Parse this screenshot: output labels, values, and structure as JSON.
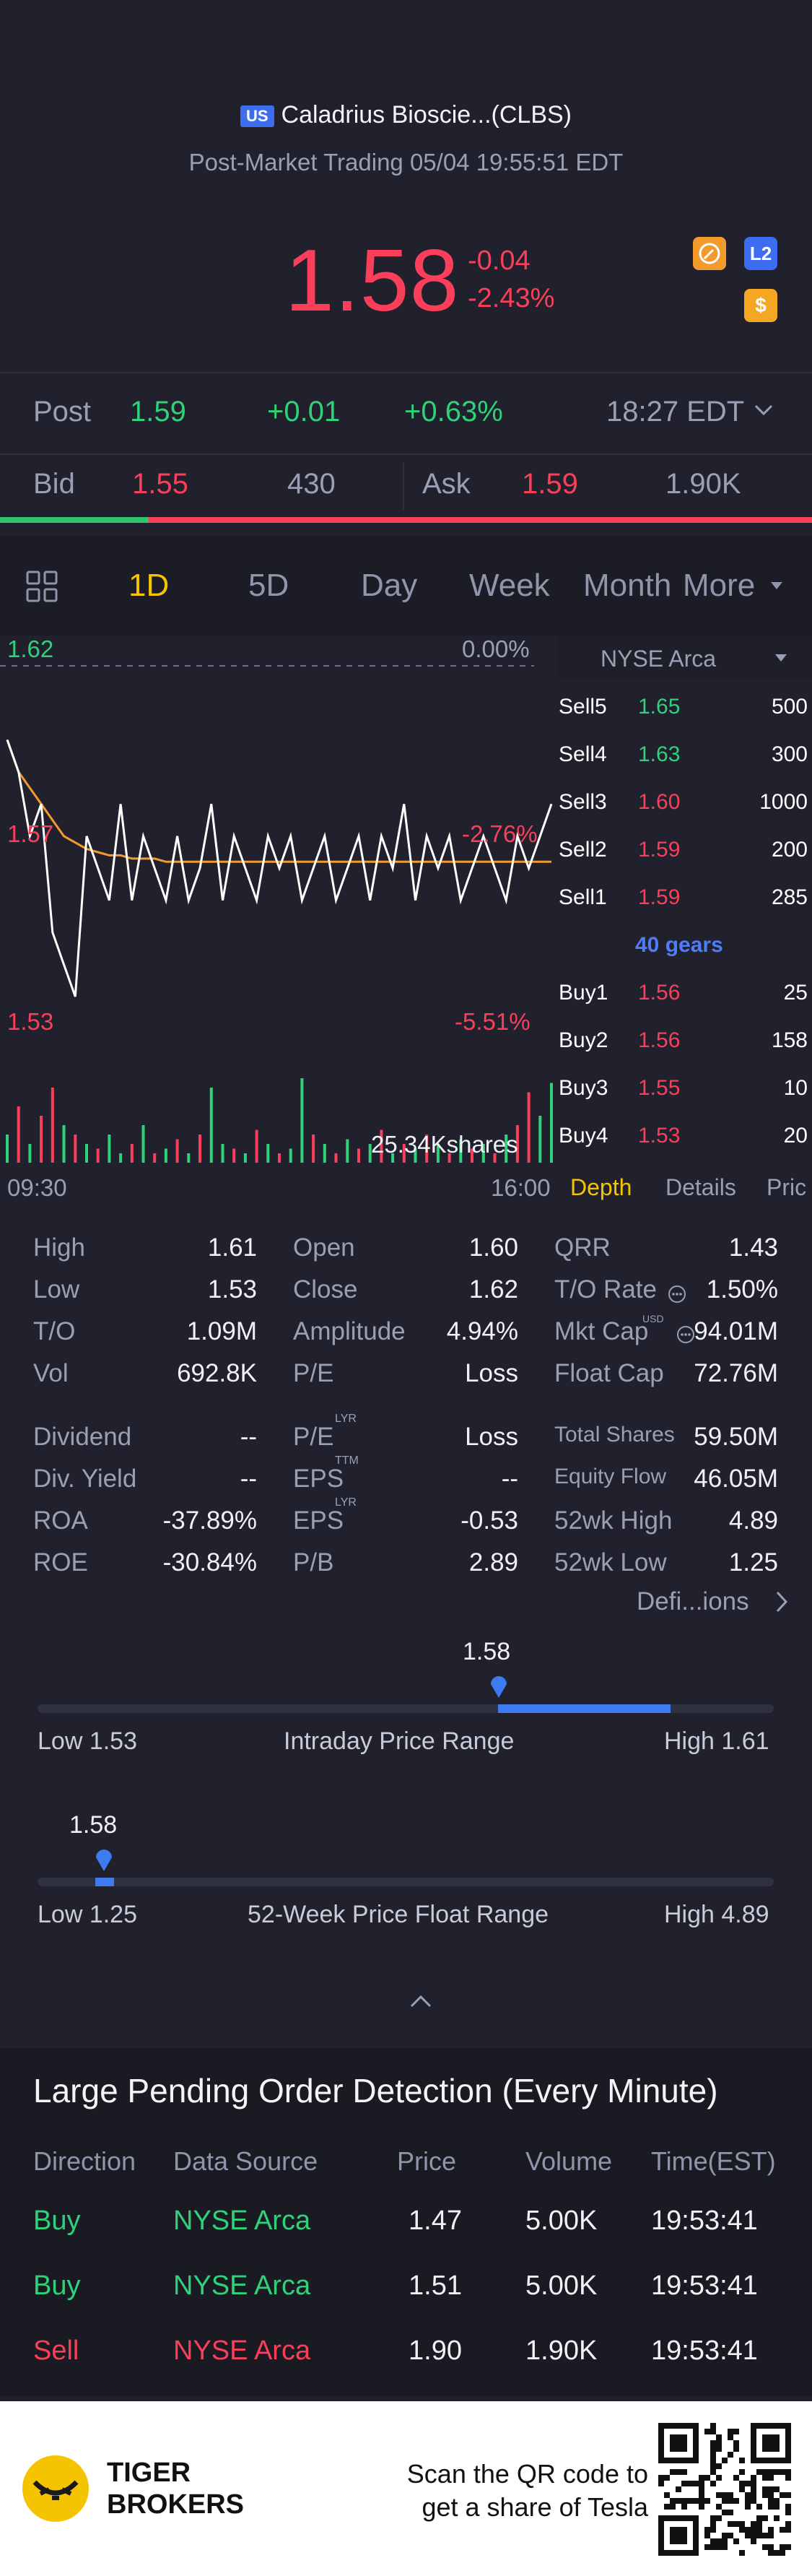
{
  "header": {
    "market_badge": "US",
    "stock_title": "Caladrius Bioscie...(CLBS)",
    "session_info": "Post-Market Trading 05/04 19:55:51 EDT",
    "price": "1.58",
    "change": "-0.04",
    "change_pct": "-2.43%",
    "icons": [
      "compass-icon",
      "level2-icon",
      "dollar-icon"
    ],
    "level2_label": "L2",
    "dollar_label": "$"
  },
  "post": {
    "label": "Post",
    "price": "1.59",
    "change": "+0.01",
    "change_pct": "+0.63%",
    "time": "18:27 EDT"
  },
  "quote": {
    "bid_label": "Bid",
    "bid_price": "1.55",
    "bid_size": "430",
    "ask_label": "Ask",
    "ask_price": "1.59",
    "ask_size": "1.90K",
    "bid_ratio": 0.183
  },
  "tabs": [
    "1D",
    "5D",
    "Day",
    "Week",
    "Month",
    "More"
  ],
  "active_tab": "1D",
  "chart_labels": {
    "high_price": "1.62",
    "high_pct": "0.00%",
    "mid_price": "1.57",
    "mid_pct": "-2.76%",
    "low_price": "1.53",
    "low_pct": "-5.51%",
    "volume": "25.34Kshares",
    "time_start": "09:30",
    "time_end": "16:00"
  },
  "chart_data": {
    "type": "line",
    "x_range": [
      "09:30",
      "16:00"
    ],
    "ylim": [
      1.53,
      1.62
    ],
    "series": [
      {
        "values": [
          1.61,
          1.6,
          1.58,
          1.59,
          1.55,
          1.54,
          1.53,
          1.58,
          1.57,
          1.56,
          1.59,
          1.56,
          1.58,
          1.57,
          1.56,
          1.58,
          1.56,
          1.57,
          1.59,
          1.56,
          1.58,
          1.57,
          1.56,
          1.58,
          1.57,
          1.58,
          1.56,
          1.57,
          1.58,
          1.56,
          1.57,
          1.58,
          1.56,
          1.58,
          1.57,
          1.59,
          1.56,
          1.58,
          1.57,
          1.58,
          1.56,
          1.57,
          1.58,
          1.57,
          1.56,
          1.58,
          1.57,
          1.58,
          1.59
        ]
      },
      {
        "values": [
          1.61,
          1.6,
          1.595,
          1.59,
          1.585,
          1.58,
          1.578,
          1.576,
          1.575,
          1.574,
          1.574,
          1.573,
          1.573,
          1.573,
          1.572,
          1.572,
          1.572,
          1.572,
          1.572,
          1.572,
          1.572,
          1.572,
          1.572,
          1.572,
          1.572,
          1.572,
          1.572,
          1.572,
          1.572,
          1.572,
          1.572,
          1.572,
          1.572,
          1.572,
          1.572,
          1.572,
          1.572,
          1.572,
          1.572,
          1.572,
          1.572,
          1.572,
          1.572,
          1.572,
          1.572,
          1.572,
          1.572,
          1.572,
          1.572
        ]
      }
    ],
    "volume": [
      0.3,
      0.6,
      0.2,
      0.5,
      0.8,
      0.4,
      0.3,
      0.2,
      0.15,
      0.3,
      0.1,
      0.2,
      0.4,
      0.1,
      0.15,
      0.25,
      0.1,
      0.3,
      0.8,
      0.2,
      0.15,
      0.1,
      0.35,
      0.2,
      0.1,
      0.15,
      0.9,
      0.3,
      0.2,
      0.1,
      0.25,
      0.15,
      0.2,
      0.35,
      0.1,
      0.2,
      0.15,
      0.3,
      0.2,
      0.1,
      0.25,
      0.15,
      0.2,
      0.1,
      0.3,
      0.4,
      0.75,
      0.5,
      0.85
    ],
    "volume_up": [
      true,
      false,
      true,
      false,
      false,
      true,
      false,
      true,
      false,
      true,
      true,
      false,
      true,
      false,
      true,
      false,
      true,
      false,
      true,
      true,
      false,
      true,
      false,
      true,
      false,
      true,
      true,
      false,
      true,
      false,
      true,
      false,
      true,
      false,
      true,
      false,
      true,
      false,
      true,
      false,
      true,
      false,
      true,
      false,
      true,
      false,
      false,
      true,
      true
    ]
  },
  "orderbook": {
    "exchange": "NYSE Arca",
    "sells": [
      {
        "label": "Sell5",
        "price": "1.65",
        "size": "500",
        "color": "green"
      },
      {
        "label": "Sell4",
        "price": "1.63",
        "size": "300",
        "color": "green"
      },
      {
        "label": "Sell3",
        "price": "1.60",
        "size": "1000",
        "color": "red"
      },
      {
        "label": "Sell2",
        "price": "1.59",
        "size": "200",
        "color": "red"
      },
      {
        "label": "Sell1",
        "price": "1.59",
        "size": "285",
        "color": "red"
      }
    ],
    "gears": "40 gears",
    "buys": [
      {
        "label": "Buy1",
        "price": "1.56",
        "size": "25",
        "color": "red"
      },
      {
        "label": "Buy2",
        "price": "1.56",
        "size": "158",
        "color": "red"
      },
      {
        "label": "Buy3",
        "price": "1.55",
        "size": "10",
        "color": "red"
      },
      {
        "label": "Buy4",
        "price": "1.53",
        "size": "20",
        "color": "red"
      }
    ],
    "tabs": [
      "Depth",
      "Details",
      "Pric"
    ]
  },
  "stats": {
    "col1": [
      [
        "High",
        "1.61"
      ],
      [
        "Low",
        "1.53"
      ],
      [
        "T/O",
        "1.09M"
      ],
      [
        "Vol",
        "692.8K"
      ],
      [
        "Dividend",
        "--"
      ],
      [
        "Div. Yield",
        "--"
      ],
      [
        "ROA",
        "-37.89%"
      ],
      [
        "ROE",
        "-30.84%"
      ]
    ],
    "col2": [
      [
        "Open",
        "1.60"
      ],
      [
        "Close",
        "1.62"
      ],
      [
        "Amplitude",
        "4.94%"
      ],
      [
        "P/E",
        "Loss"
      ],
      [
        "P/E",
        "Loss"
      ],
      [
        "EPS",
        "--"
      ],
      [
        "EPS",
        "-0.53"
      ],
      [
        "P/B",
        "2.89"
      ]
    ],
    "col2_sup": [
      "",
      "",
      "",
      "",
      "LYR",
      "TTM",
      "LYR",
      ""
    ],
    "col3": [
      [
        "QRR",
        "1.43"
      ],
      [
        "T/O Rate",
        "1.50%"
      ],
      [
        "Mkt Cap",
        "94.01M"
      ],
      [
        "Float Cap",
        "72.76M"
      ],
      [
        "Total Shares",
        "59.50M"
      ],
      [
        "Equity Flow",
        "46.05M"
      ],
      [
        "52wk High",
        "4.89"
      ],
      [
        "52wk Low",
        "1.25"
      ]
    ],
    "mkt_cap_sup": "USD",
    "eps_ttm_value": "-0.53",
    "definitions_link": "Defi...ions"
  },
  "intraday_range": {
    "current": "1.58",
    "low_label": "Low 1.53",
    "title": "Intraday Price Range",
    "high_label": "High 1.61",
    "low": 1.53,
    "high": 1.61,
    "value": 1.58
  },
  "week52_range": {
    "current": "1.58",
    "low_label": "Low 1.25",
    "title": "52-Week Price Float Range",
    "high_label": "High 4.89",
    "low": 1.25,
    "high": 4.89,
    "value": 1.58
  },
  "pending": {
    "title": "Large Pending Order Detection (Every Minute)",
    "headers": [
      "Direction",
      "Data Source",
      "Price",
      "Volume",
      "Time(EST)"
    ],
    "rows": [
      {
        "direction": "Buy",
        "source": "NYSE Arca",
        "price": "1.47",
        "volume": "5.00K",
        "time": "19:53:41",
        "color": "#2fd27a"
      },
      {
        "direction": "Buy",
        "source": "NYSE Arca",
        "price": "1.51",
        "volume": "5.00K",
        "time": "19:53:41",
        "color": "#2fd27a"
      },
      {
        "direction": "Sell",
        "source": "NYSE Arca",
        "price": "1.90",
        "volume": "1.90K",
        "time": "19:53:41",
        "color": "#fb3f5b"
      }
    ]
  },
  "footer": {
    "brand_line1": "TIGER",
    "brand_line2": "BROKERS",
    "cta_line1": "Scan the QR code to",
    "cta_line2": "get a share of Tesla"
  },
  "colors": {
    "red": "#fb3f5b",
    "green": "#2fd27a",
    "blue": "#3d7bf0",
    "accent": "#f5c400"
  }
}
